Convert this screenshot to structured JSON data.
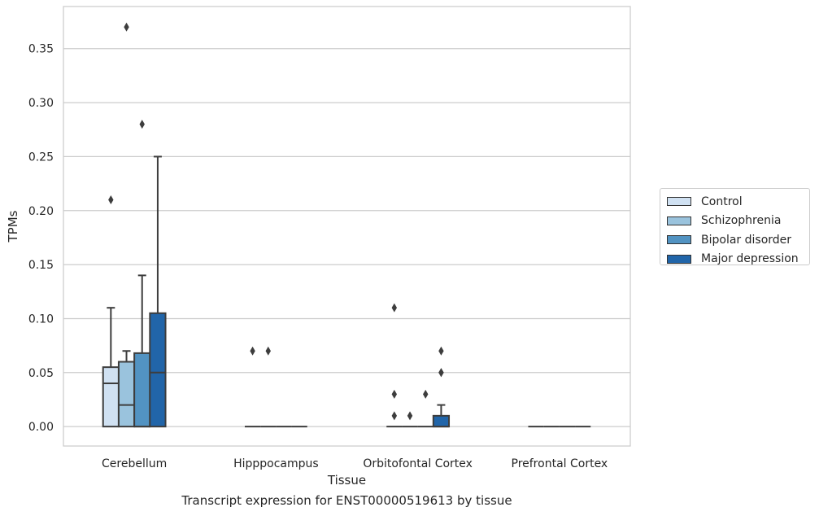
{
  "chart_data": {
    "type": "box",
    "title": "Transcript expression for ENST00000519613 by tissue",
    "xlabel": "Tissue",
    "ylabel": "TPMs",
    "ylim": [
      -0.018,
      0.389
    ],
    "yticks": [
      0.0,
      0.05,
      0.1,
      0.15,
      0.2,
      0.25,
      0.3,
      0.35
    ],
    "ytick_labels": [
      "0.00",
      "0.05",
      "0.10",
      "0.15",
      "0.20",
      "0.25",
      "0.30",
      "0.35"
    ],
    "grid": "horizontal",
    "legend_position": "right",
    "categories": [
      "Cerebellum",
      "Hipppocampus",
      "Orbitofontal Cortex",
      "Prefrontal Cortex"
    ],
    "series": [
      {
        "name": "Control",
        "color": "#d0e1f2",
        "boxes": [
          {
            "q1": 0.0,
            "median": 0.04,
            "q3": 0.055,
            "whisker_low": 0.0,
            "whisker_high": 0.11,
            "outliers": [
              0.21
            ]
          },
          {
            "q1": 0.0,
            "median": 0.0,
            "q3": 0.0,
            "whisker_low": 0.0,
            "whisker_high": 0.0,
            "outliers": [
              0.07
            ]
          },
          {
            "q1": 0.0,
            "median": 0.0,
            "q3": 0.0,
            "whisker_low": 0.0,
            "whisker_high": 0.0,
            "outliers": [
              0.11,
              0.03,
              0.01
            ]
          },
          {
            "q1": 0.0,
            "median": 0.0,
            "q3": 0.0,
            "whisker_low": 0.0,
            "whisker_high": 0.0,
            "outliers": []
          }
        ]
      },
      {
        "name": "Schizophrenia",
        "color": "#9ac3dd",
        "boxes": [
          {
            "q1": 0.0,
            "median": 0.02,
            "q3": 0.06,
            "whisker_low": 0.0,
            "whisker_high": 0.07,
            "outliers": [
              0.37
            ]
          },
          {
            "q1": 0.0,
            "median": 0.0,
            "q3": 0.0,
            "whisker_low": 0.0,
            "whisker_high": 0.0,
            "outliers": [
              0.07
            ]
          },
          {
            "q1": 0.0,
            "median": 0.0,
            "q3": 0.0,
            "whisker_low": 0.0,
            "whisker_high": 0.0,
            "outliers": [
              0.01
            ]
          },
          {
            "q1": 0.0,
            "median": 0.0,
            "q3": 0.0,
            "whisker_low": 0.0,
            "whisker_high": 0.0,
            "outliers": []
          }
        ]
      },
      {
        "name": "Bipolar disorder",
        "color": "#5293c2",
        "boxes": [
          {
            "q1": 0.0,
            "median": 0.0,
            "q3": 0.068,
            "whisker_low": 0.0,
            "whisker_high": 0.14,
            "outliers": [
              0.28
            ]
          },
          {
            "q1": 0.0,
            "median": 0.0,
            "q3": 0.0,
            "whisker_low": 0.0,
            "whisker_high": 0.0,
            "outliers": []
          },
          {
            "q1": 0.0,
            "median": 0.0,
            "q3": 0.0,
            "whisker_low": 0.0,
            "whisker_high": 0.0,
            "outliers": [
              0.03
            ]
          },
          {
            "q1": 0.0,
            "median": 0.0,
            "q3": 0.0,
            "whisker_low": 0.0,
            "whisker_high": 0.0,
            "outliers": []
          }
        ]
      },
      {
        "name": "Major depression",
        "color": "#2165a9",
        "boxes": [
          {
            "q1": 0.0,
            "median": 0.05,
            "q3": 0.105,
            "whisker_low": 0.0,
            "whisker_high": 0.25,
            "outliers": []
          },
          {
            "q1": 0.0,
            "median": 0.0,
            "q3": 0.0,
            "whisker_low": 0.0,
            "whisker_high": 0.0,
            "outliers": []
          },
          {
            "q1": 0.0,
            "median": 0.0,
            "q3": 0.01,
            "whisker_low": 0.0,
            "whisker_high": 0.02,
            "outliers": [
              0.05,
              0.05,
              0.07
            ]
          },
          {
            "q1": 0.0,
            "median": 0.0,
            "q3": 0.0,
            "whisker_low": 0.0,
            "whisker_high": 0.0,
            "outliers": []
          }
        ]
      }
    ]
  }
}
